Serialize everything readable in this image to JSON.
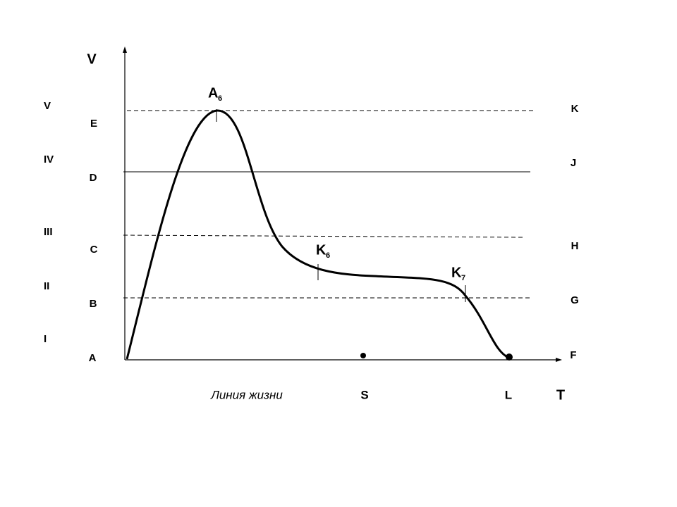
{
  "axes": {
    "y_label": "V",
    "x_label": "T"
  },
  "levels": [
    {
      "roman": "V",
      "left": "E",
      "right": "K"
    },
    {
      "roman": "IV",
      "left": "D",
      "right": "J"
    },
    {
      "roman": "III",
      "left": "C",
      "right": "H"
    },
    {
      "roman": "II",
      "left": "B",
      "right": "G"
    },
    {
      "roman": "I",
      "left": "A",
      "right": "F"
    }
  ],
  "points": [
    {
      "label": "A",
      "sub": "6"
    },
    {
      "label": "K",
      "sub": "6"
    },
    {
      "label": "K",
      "sub": "7"
    }
  ],
  "timeline": {
    "caption": "Линия жизни",
    "s": "S",
    "l": "L"
  }
}
